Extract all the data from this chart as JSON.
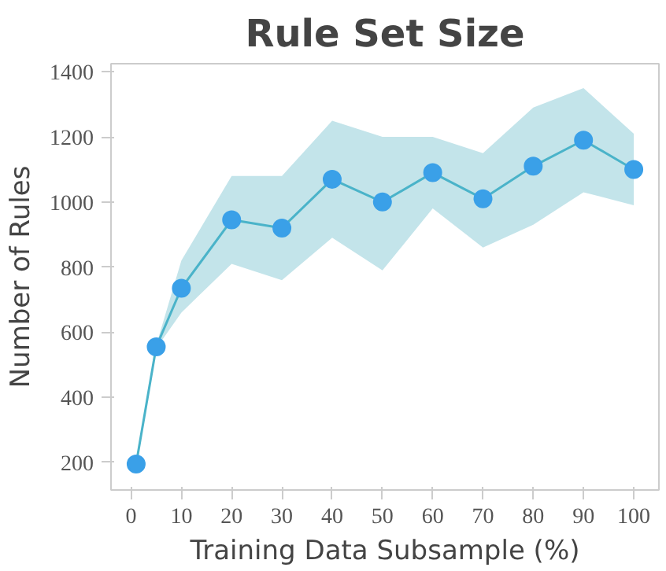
{
  "chart_data": {
    "type": "line",
    "title": "Rule Set Size",
    "xlabel": "Training Data Subsample (%)",
    "ylabel": "Number of Rules",
    "x": [
      1,
      5,
      10,
      20,
      30,
      40,
      50,
      60,
      70,
      80,
      90,
      100
    ],
    "series": [
      {
        "color": "#3aa0e8",
        "values": [
          195,
          555,
          735,
          945,
          920,
          1070,
          1000,
          1090,
          1010,
          1110,
          1190,
          1100
        ],
        "lower": [
          195,
          550,
          660,
          810,
          760,
          890,
          790,
          980,
          860,
          930,
          1030,
          990
        ],
        "upper": [
          195,
          560,
          820,
          1080,
          1080,
          1250,
          1200,
          1200,
          1150,
          1290,
          1350,
          1210
        ]
      }
    ],
    "xlim": [
      -4,
      105
    ],
    "ylim": [
      115,
      1425
    ],
    "xticks": [
      0,
      10,
      20,
      30,
      40,
      50,
      60,
      70,
      80,
      90,
      100
    ],
    "yticks": [
      200,
      400,
      600,
      800,
      1000,
      1200,
      1400
    ],
    "grid": false,
    "marker": "circle",
    "line_style": "solid"
  }
}
